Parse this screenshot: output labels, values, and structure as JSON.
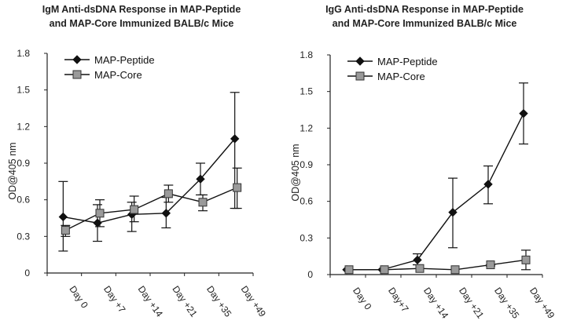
{
  "chart_data": [
    {
      "type": "line",
      "title": [
        "IgM Anti-dsDNA Response in MAP-Peptide",
        "and MAP-Core Immunized BALB/c Mice"
      ],
      "xlabel": "",
      "ylabel": "OD@405 nm",
      "categories": [
        "Day 0",
        "Day +7",
        "Day +14",
        "Day +21",
        "Day +35",
        "Day +49"
      ],
      "yticks": [
        "0",
        "0.3",
        "0.6",
        "0.9",
        "1.2",
        "1.5",
        "1.8"
      ],
      "ylim": [
        0,
        1.8
      ],
      "legend_position": "top-left",
      "series": [
        {
          "name": "MAP-Peptide",
          "marker": "diamond",
          "color": "#111111",
          "values": [
            0.46,
            0.41,
            0.48,
            0.49,
            0.77,
            1.1
          ],
          "error_low": [
            0.18,
            0.26,
            0.34,
            0.37,
            0.64,
            0.53
          ],
          "error_high": [
            0.75,
            0.56,
            0.58,
            0.62,
            0.9,
            1.48
          ]
        },
        {
          "name": "MAP-Core",
          "marker": "square",
          "color": "#9a9a9a",
          "values": [
            0.35,
            0.49,
            0.52,
            0.65,
            0.58,
            0.7
          ],
          "error_low": [
            0.3,
            0.38,
            0.42,
            0.58,
            0.51,
            0.53
          ],
          "error_high": [
            0.39,
            0.6,
            0.63,
            0.72,
            0.64,
            0.86
          ]
        }
      ]
    },
    {
      "type": "line",
      "title": [
        "IgG Anti-dsDNA Response in MAP-Peptide",
        "and MAP-Core Immunized BALB/c Mice"
      ],
      "xlabel": "",
      "ylabel": "OD@405 nm",
      "categories": [
        "Day 0",
        "Day+7",
        "Day +14",
        "Day +21",
        "Day +35",
        "Day +49"
      ],
      "yticks": [
        "0",
        "0.3",
        "0.6",
        "0.9",
        "1.2",
        "1.5",
        "1.8"
      ],
      "ylim": [
        0,
        1.8
      ],
      "legend_position": "top-left",
      "series": [
        {
          "name": "MAP-Peptide",
          "marker": "diamond",
          "color": "#111111",
          "values": [
            0.04,
            0.04,
            0.12,
            0.51,
            0.74,
            1.32
          ],
          "error_low": [
            0.04,
            0.04,
            0.08,
            0.22,
            0.58,
            1.07
          ],
          "error_high": [
            0.04,
            0.04,
            0.17,
            0.79,
            0.89,
            1.57
          ]
        },
        {
          "name": "MAP-Core",
          "marker": "square",
          "color": "#9a9a9a",
          "values": [
            0.04,
            0.04,
            0.05,
            0.04,
            0.08,
            0.12
          ],
          "error_low": [
            0.04,
            0.04,
            0.05,
            0.04,
            0.07,
            0.04
          ],
          "error_high": [
            0.04,
            0.04,
            0.05,
            0.04,
            0.08,
            0.2
          ]
        }
      ]
    }
  ]
}
